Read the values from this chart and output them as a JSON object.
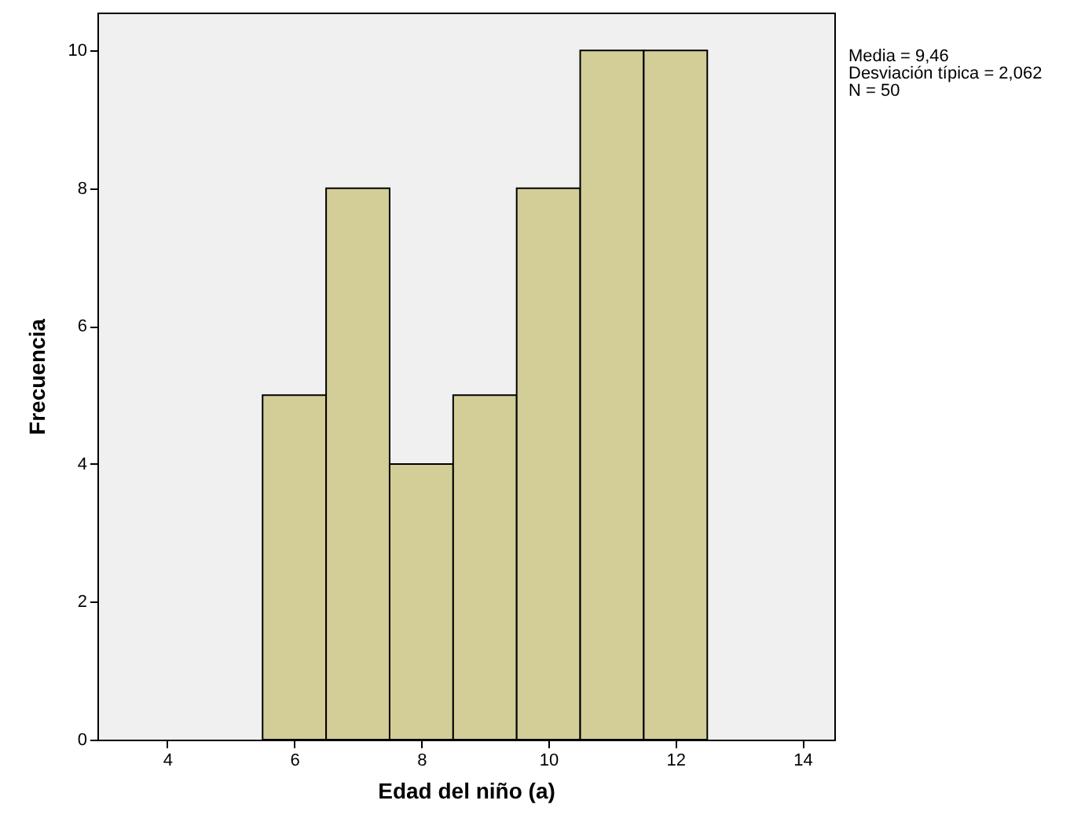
{
  "chart_data": {
    "type": "histogram",
    "xlabel": "Edad del niño (a)",
    "ylabel": "Frecuencia",
    "bins": [
      5.5,
      6.5,
      7.5,
      8.5,
      9.5,
      10.5,
      11.5,
      12.5
    ],
    "values": [
      5,
      8,
      4,
      5,
      8,
      10,
      10
    ],
    "color": "#d3ce97",
    "xlim": [
      2.9,
      14.5
    ],
    "xticks": [
      4,
      6,
      8,
      10,
      12,
      14
    ],
    "ylim": [
      0,
      10.55
    ],
    "yticks": [
      0,
      2,
      4,
      6,
      8,
      10
    ],
    "grid": false,
    "annotations": [
      "Media = 9,46",
      "Desviación típica = 2,062",
      "N = 50"
    ]
  }
}
